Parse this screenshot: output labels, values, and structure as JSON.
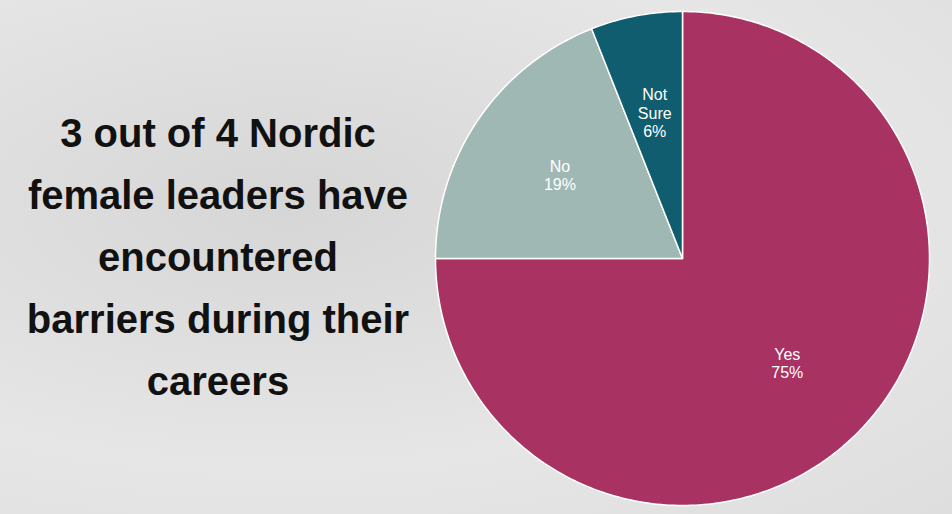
{
  "chart_data": {
    "type": "pie",
    "title": "3 out of 4 Nordic female leaders have encountered barriers during their careers",
    "categories": [
      "Yes",
      "No",
      "Not Sure"
    ],
    "values": [
      75,
      19,
      6
    ],
    "value_labels": [
      "75%",
      "19%",
      "6%"
    ],
    "colors": [
      "#a83363",
      "#9fb8b3",
      "#0f5d6e"
    ],
    "data_labels": true
  }
}
